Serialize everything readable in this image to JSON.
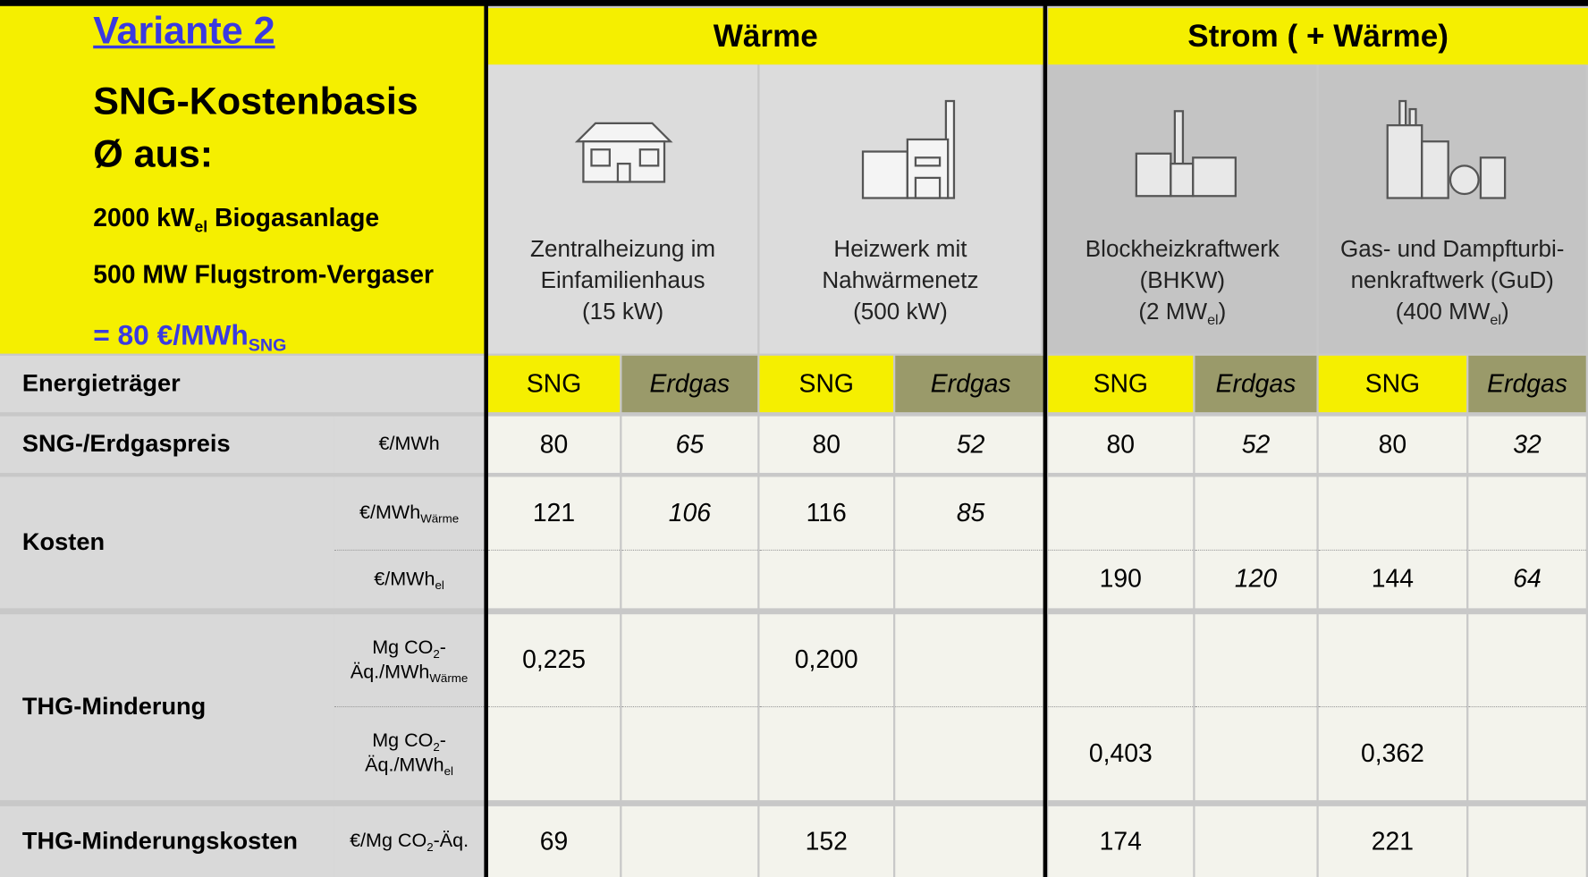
{
  "header": {
    "title": "Variante 2",
    "heading": [
      "SNG-Kostenbasis",
      "Ø aus:"
    ],
    "inputs": [
      [
        "2000 kW",
        {
          "sub": "el"
        },
        " Biogasanlage"
      ],
      [
        "500 MW Flugstrom-Vergaser"
      ]
    ],
    "result": [
      "= 80 €/MWh",
      {
        "sub": "SNG"
      }
    ]
  },
  "groups": [
    "Wärme",
    "Strom ( + Wärme)"
  ],
  "technologies": [
    [
      [
        "Zentralheizung im"
      ],
      [
        "Einfamilienhaus"
      ],
      [
        "(15 kW)"
      ]
    ],
    [
      [
        "Heizwerk mit"
      ],
      [
        "Nahwärmenetz"
      ],
      [
        "(500 kW)"
      ]
    ],
    [
      [
        "Blockheizkraftwerk"
      ],
      [
        "(BHKW)"
      ],
      [
        "(2 MW",
        {
          "sub": "el"
        },
        ")"
      ]
    ],
    [
      [
        "Gas- und Dampfturbi-"
      ],
      [
        "nenkraftwerk (GuD)"
      ],
      [
        "(400 MW",
        {
          "sub": "el"
        },
        ")"
      ]
    ]
  ],
  "carrier_row": {
    "label": "Energieträger",
    "carriers": [
      "SNG",
      "Erdgas",
      "SNG",
      "Erdgas",
      "SNG",
      "Erdgas",
      "SNG",
      "Erdgas"
    ]
  },
  "rows": [
    {
      "label": "SNG-/Erdgaspreis",
      "lines": [
        {
          "unit": [
            [
              "€/MWh"
            ]
          ],
          "values": [
            80,
            65,
            80,
            52,
            80,
            52,
            80,
            32
          ]
        }
      ]
    },
    {
      "label": "Kosten",
      "lines": [
        {
          "unit": [
            [
              "€/MWh",
              {
                "sub": "Wärme"
              }
            ]
          ],
          "values": [
            121,
            106,
            116,
            85,
            null,
            null,
            null,
            null
          ]
        },
        {
          "unit": [
            [
              "€/MWh",
              {
                "sub": "el"
              }
            ]
          ],
          "values": [
            null,
            null,
            null,
            null,
            190,
            120,
            144,
            64
          ]
        }
      ]
    },
    {
      "label": "THG-Minderung",
      "lines": [
        {
          "unit": [
            [
              "Mg CO",
              {
                "sub": "2"
              },
              "-"
            ],
            [
              "Äq./MWh",
              {
                "sub": "Wärme"
              }
            ]
          ],
          "values": [
            "0,225",
            null,
            "0,200",
            null,
            null,
            null,
            null,
            null
          ]
        },
        {
          "unit": [
            [
              "Mg CO",
              {
                "sub": "2"
              },
              "-"
            ],
            [
              "Äq./MWh",
              {
                "sub": "el"
              }
            ]
          ],
          "values": [
            null,
            null,
            null,
            null,
            "0,403",
            null,
            "0,362",
            null
          ]
        }
      ]
    },
    {
      "label": "THG-Minderungskosten",
      "lines": [
        {
          "unit": [
            [
              "€/Mg CO",
              {
                "sub": "2"
              },
              "-Äq."
            ]
          ],
          "values": [
            69,
            null,
            152,
            null,
            174,
            null,
            221,
            null
          ]
        }
      ]
    }
  ]
}
